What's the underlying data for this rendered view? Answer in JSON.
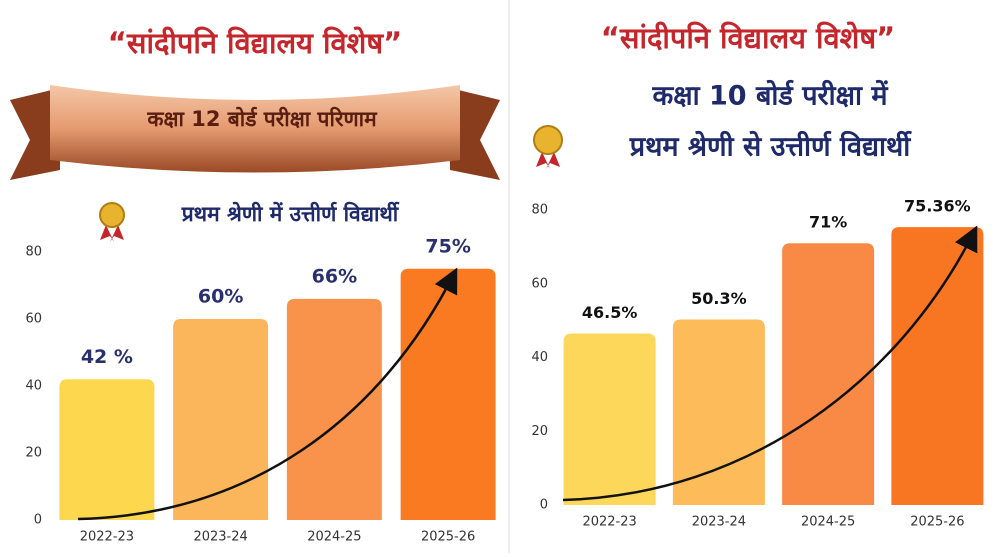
{
  "chart_data": [
    {
      "type": "bar",
      "title": "“सांदीपनि विद्यालय विशेष”",
      "subtitle": "कक्षा 12 बोर्ड परीक्षा परिणाम",
      "annotation": "प्रथम श्रेणी में उत्तीर्ण विद्यार्थी",
      "categories": [
        "2022-23",
        "2023-24",
        "2024-25",
        "2025-26"
      ],
      "values": [
        42,
        60,
        66,
        75
      ],
      "value_labels": [
        "42 %",
        "60%",
        "66%",
        "75%"
      ],
      "colors": [
        "#fdd84f",
        "#fbb55a",
        "#f9924a",
        "#f97a20"
      ],
      "ylim": [
        0,
        80
      ],
      "yticks": [
        0,
        20,
        40,
        60,
        80
      ]
    },
    {
      "type": "bar",
      "title": "“सांदीपनि विद्यालय विशेष”",
      "subtitle": "कक्षा 10 बोर्ड परीक्षा में",
      "annotation": "प्रथम श्रेणी से उत्तीर्ण विद्यार्थी",
      "categories": [
        "2022-23",
        "2023-24",
        "2024-25",
        "2025-26"
      ],
      "values": [
        46.5,
        50.3,
        71,
        75.36
      ],
      "value_labels": [
        "46.5%",
        "50.3%",
        "71%",
        "75.36%"
      ],
      "colors": [
        "#fdd75a",
        "#fdbb5a",
        "#f98a45",
        "#f87522"
      ],
      "ylim": [
        0,
        80
      ],
      "yticks": [
        0,
        20,
        40,
        60,
        80
      ]
    }
  ]
}
